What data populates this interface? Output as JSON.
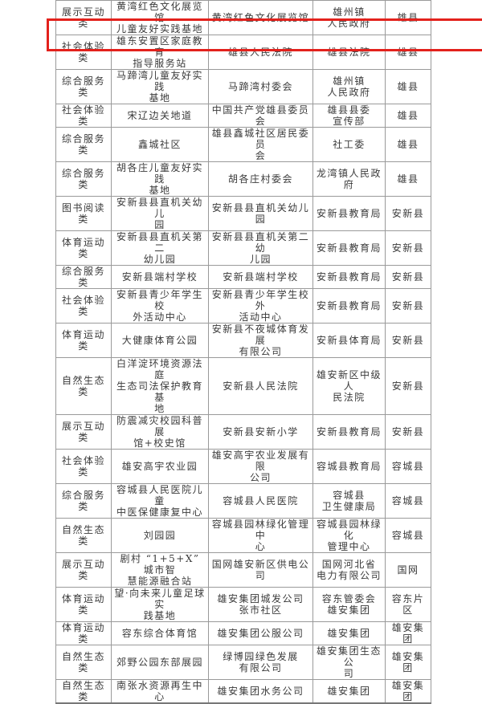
{
  "highlight_color": "#e3211c",
  "rows": [
    [
      "展示互动类",
      "黄湾红色文化展览馆\n儿童友好实践基地",
      "黄湾红色文化展览馆",
      "雄州镇\n人民政府",
      "雄县"
    ],
    [
      "社会体验类",
      "雄东安置区家庭教育\n指导服务站",
      "雄县人民法院",
      "雄县法院",
      "雄县"
    ],
    [
      "综合服务类",
      "马蹄湾儿童友好实践\n基地",
      "马蹄湾村委会",
      "雄州镇\n人民政府",
      "雄县"
    ],
    [
      "社会体验类",
      "宋辽边关地道",
      "中国共产党雄县委员会",
      "雄县县委\n宣传部",
      "雄县"
    ],
    [
      "综合服务类",
      "鑫城社区",
      "雄县鑫城社区居民委员\n会",
      "社工委",
      "雄县"
    ],
    [
      "综合服务类",
      "胡各庄儿童友好实践\n基地",
      "胡各庄村委会",
      "龙湾镇人民政府",
      "雄县"
    ],
    [
      "图书阅读类",
      "安新县县直机关幼儿\n园",
      "安新县县直机关幼儿园",
      "安新县教育局",
      "安新县"
    ],
    [
      "体育运动类",
      "安新县县直机关第二\n幼儿园",
      "安新县县直机关第二幼\n儿园",
      "安新县教育局",
      "安新县"
    ],
    [
      "综合服务类",
      "安新县端村学校",
      "安新县端村学校",
      "安新县教育局",
      "安新县"
    ],
    [
      "社会体验类",
      "安新县青少年学生校\n外活动中心",
      "安新县青少年学生校外\n活动中心",
      "安新县教育局",
      "安新县"
    ],
    [
      "体育运动类",
      "大健康体育公园",
      "安新县不夜城体育发展\n有限公司",
      "安新县体育局",
      "安新县"
    ],
    [
      "自然生态类",
      "白洋淀环境资源法庭\n生态司法保护教育基\n地",
      "安新县人民法院",
      "雄安新区中级人\n民法院",
      "安新县"
    ],
    [
      "展示互动类",
      "防震减灾校园科普展\n馆+校史馆",
      "安新县安新小学",
      "安新县教育局",
      "安新县"
    ],
    [
      "社会体验类",
      "雄安高宇农业园",
      "雄安高宇农业发展有限\n公司",
      "容城县教育局",
      "容城县"
    ],
    [
      "综合服务类",
      "容城县人民医院儿童\n中医保健康复中心",
      "容城县人民医院",
      "容城县\n卫生健康局",
      "容城县"
    ],
    [
      "自然生态类",
      "刘园园",
      "容城县园林绿化管理中\n心",
      "容城县园林绿化\n管理中心",
      "容城县"
    ],
    [
      "展示互动类",
      "剧村 “1+5+X” 城市智\n慧能源融合站",
      "国网雄安新区供电公司",
      "国网河北省\n电力有限公司",
      "国网"
    ],
    [
      "体育运动类",
      "望·向未来儿童足球实\n践基地",
      "雄安集团城发公司\n张市社区",
      "容东管委会\n雄安集团",
      "容东片区"
    ],
    [
      "体育运动类",
      "容东综合体育馆",
      "雄安集团公服公司",
      "雄安集团",
      "雄安集团"
    ],
    [
      "自然生态类",
      "郊野公园东部展园",
      "绿博园绿色发展\n有限公司",
      "雄安集团生态公\n司",
      "雄安集团"
    ],
    [
      "自然生态类",
      "南张水资源再生中心",
      "雄安集团水务公司",
      "雄安集团",
      "雄安集团"
    ]
  ]
}
